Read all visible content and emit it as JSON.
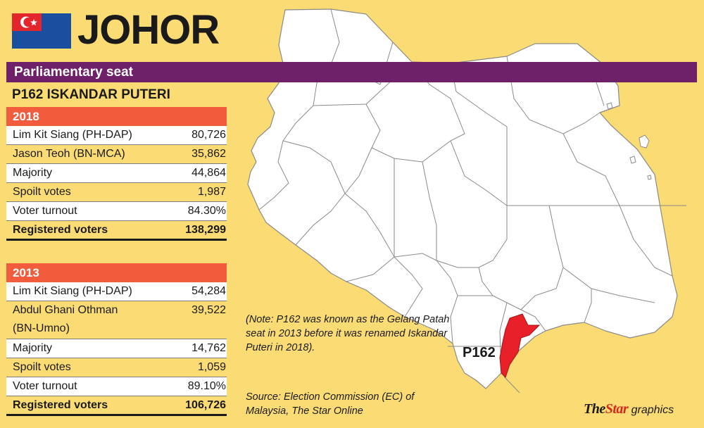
{
  "header": {
    "state": "JOHOR",
    "flag_colors": {
      "red": "#e3262b",
      "blue": "#1a4fa0",
      "white": "#ffffff"
    }
  },
  "section_band": {
    "label": "Parliamentary seat",
    "color": "#6e2168"
  },
  "seat": {
    "name": "P162 ISKANDAR PUTERI"
  },
  "results": [
    {
      "year": "2018",
      "candidates": [
        {
          "name": "Lim Kit Siang (PH-DAP)",
          "votes": "80,726"
        },
        {
          "name": "Jason Teoh (BN-MCA)",
          "votes": "35,862"
        }
      ],
      "majority_label": "Majority",
      "majority": "44,864",
      "spoilt_label": "Spoilt votes",
      "spoilt": "1,987",
      "turnout_label": "Voter turnout",
      "turnout": "84.30%",
      "registered_label": "Registered voters",
      "registered": "138,299"
    },
    {
      "year": "2013",
      "candidates": [
        {
          "name": "Lim Kit Siang (PH-DAP)",
          "votes": "54,284"
        },
        {
          "name": "Abdul Ghani Othman",
          "name_line2": "(BN-Umno)",
          "votes": "39,522"
        }
      ],
      "majority_label": "Majority",
      "majority": "14,762",
      "spoilt_label": "Spoilt votes",
      "spoilt": "1,059",
      "turnout_label": "Voter turnout",
      "turnout": "89.10%",
      "registered_label": "Registered voters",
      "registered": "106,726"
    }
  ],
  "map": {
    "highlight_label": "P162",
    "highlight_color": "#e8202a",
    "land_color": "#ffffff",
    "border_color": "#8a8a8a",
    "background_color": "#fadb74"
  },
  "note": "(Note: P162 was known as the Gelang Patah seat in 2013 before it was renamed Iskandar Puteri in 2018).",
  "source": "Source: Election Commission (EC) of Malaysia, The Star Online",
  "credit": {
    "brand_the": "The",
    "brand_star": "Star",
    "suffix": " graphics"
  },
  "colors": {
    "year_bar": "#f15c3d",
    "row_white": "#ffffff",
    "page_bg": "#fadb74"
  }
}
